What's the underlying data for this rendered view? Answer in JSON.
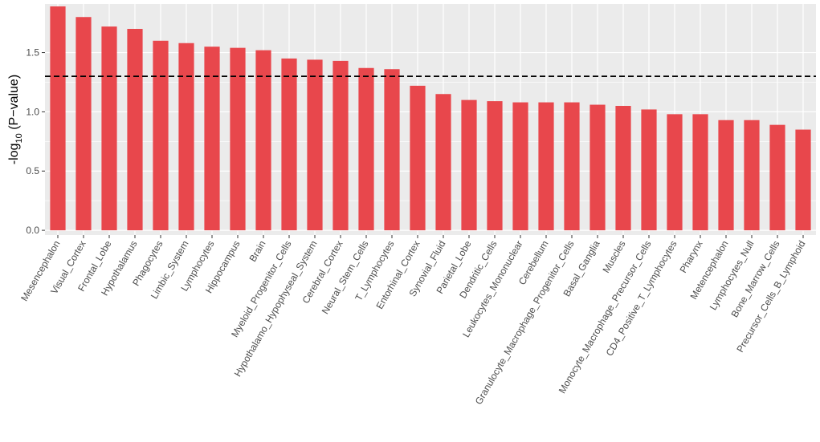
{
  "chart_data": {
    "type": "bar",
    "title": "",
    "xlabel": "",
    "ylabel": "-log10 (P-value)",
    "ylabel_parts": {
      "prefix": "-log",
      "subscript": "10",
      "suffix": " (P−value)"
    },
    "ylim": [
      -0.04,
      1.91
    ],
    "yticks": [
      0.0,
      0.5,
      1.0,
      1.5
    ],
    "ytick_labels": [
      "0.0",
      "0.5",
      "1.0",
      "1.5"
    ],
    "threshold": 1.3,
    "threshold_style": "dashed",
    "grid": true,
    "legend": "none",
    "colors": {
      "bar": "#e8474c",
      "panel": "#ebebeb",
      "grid": "#ffffff",
      "threshold": "#000000"
    },
    "categories": [
      "Mesencephalon",
      "Visual_Cortex",
      "Frontal_Lobe",
      "Hypothalamus",
      "Phagocytes",
      "Limbic_System",
      "Lymphocytes",
      "Hippocampus",
      "Brain",
      "Myeloid_Progenitor_Cells",
      "Hypothalamo_Hypophyseal_System",
      "Cerebral_Cortex",
      "Neural_Stem_Cells",
      "T_Lymphocytes",
      "Entorhinal_Cortex",
      "Synovial_Fluid",
      "Parietal_Lobe",
      "Dendritic_Cells",
      "Leukocytes_Mononuclear",
      "Cerebellum",
      "Granulocyte_Macrophage_Progenitor_Cells",
      "Basal_Ganglia",
      "Muscles",
      "Monocyte_Macrophage_Precursor_Cells",
      "CD4_Positive_T_Lymphocytes",
      "Pharynx",
      "Metencephalon",
      "Lymphocytes_Null",
      "Bone_Marrow_Cells",
      "Precursor_Cells_B_Lymphoid"
    ],
    "values": [
      1.89,
      1.8,
      1.72,
      1.7,
      1.6,
      1.58,
      1.55,
      1.54,
      1.52,
      1.45,
      1.44,
      1.43,
      1.37,
      1.36,
      1.22,
      1.15,
      1.1,
      1.09,
      1.08,
      1.08,
      1.08,
      1.06,
      1.05,
      1.02,
      0.98,
      0.98,
      0.93,
      0.93,
      0.89,
      0.85
    ]
  }
}
